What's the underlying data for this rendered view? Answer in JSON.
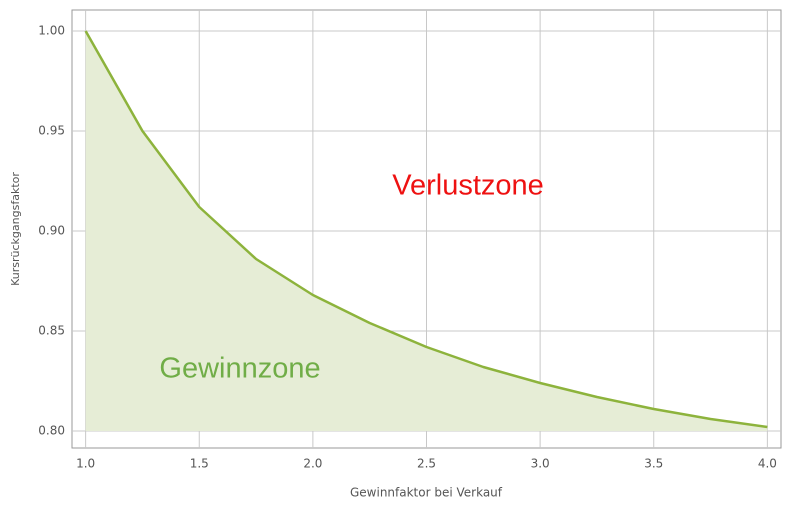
{
  "chart_data": {
    "type": "area",
    "xlabel": "Gewinnfaktor bei Verkauf",
    "ylabel": "Kursrückgangsfaktor",
    "x": [
      1,
      1.25,
      1.5,
      1.75,
      2,
      2.25,
      2.5,
      2.75,
      3,
      3.25,
      3.5,
      3.75,
      4
    ],
    "values": [
      1.0,
      0.95,
      0.912,
      0.886,
      0.868,
      0.854,
      0.842,
      0.832,
      0.824,
      0.817,
      0.811,
      0.806,
      0.802
    ],
    "color": "#8db33c",
    "fill_color": "#e6edd6",
    "xlim": [
      0.94,
      4.06
    ],
    "ylim": [
      0.7915,
      1.0105
    ],
    "xticks": [
      {
        "value": 1,
        "label": "1.0"
      },
      1.5,
      {
        "value": 2,
        "label": "2.0"
      },
      2.5,
      {
        "value": 3,
        "label": "3.0"
      },
      3.5,
      {
        "value": 4,
        "label": "4.0"
      }
    ],
    "yticks": [
      {
        "value": 0.8,
        "label": "0.80"
      },
      0.85,
      {
        "value": 0.9,
        "label": "0.90"
      },
      0.95,
      {
        "value": 1.0,
        "label": "1.00"
      }
    ],
    "grid": true,
    "annotations": [
      {
        "text": "Verlustzone",
        "color": "#ee1111"
      },
      {
        "text": "Gewinnzone",
        "color": "#70ad47"
      }
    ]
  }
}
